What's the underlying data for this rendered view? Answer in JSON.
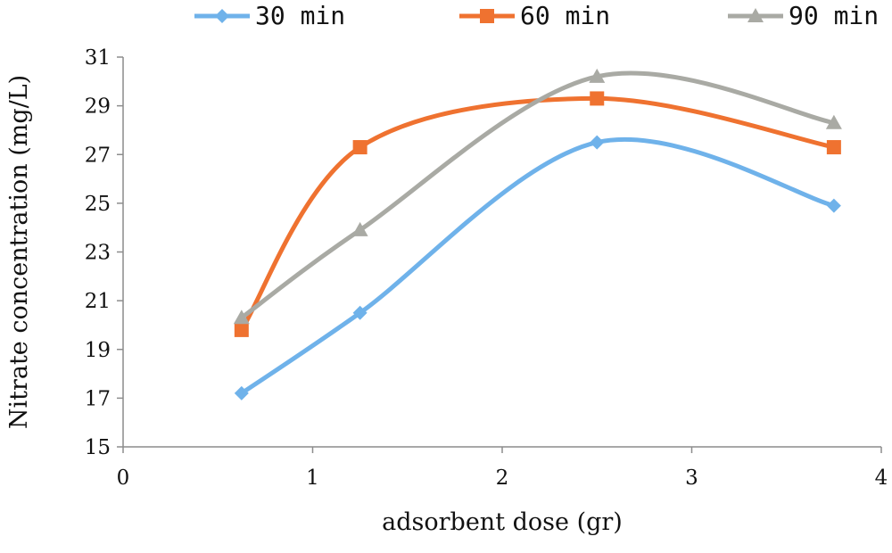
{
  "chart_data": {
    "type": "line",
    "title": "",
    "xlabel": "adsorbent dose (gr)",
    "ylabel": "Nitrate concentration (mg/L)",
    "xlim": [
      0,
      4
    ],
    "ylim": [
      15,
      31
    ],
    "x_ticks": [
      0,
      1,
      2,
      3,
      4
    ],
    "y_ticks": [
      15,
      17,
      19,
      21,
      23,
      25,
      27,
      29,
      31
    ],
    "grid": false,
    "smooth": true,
    "legend_position": "top",
    "x": [
      0.625,
      1.25,
      2.5,
      3.75
    ],
    "series": [
      {
        "name": "30 min",
        "values": [
          17.2,
          20.5,
          27.5,
          24.9
        ],
        "color": "#6fb2ea",
        "marker": "diamond"
      },
      {
        "name": "60 min",
        "values": [
          19.8,
          27.3,
          29.3,
          27.3
        ],
        "color": "#ef7230",
        "marker": "square"
      },
      {
        "name": "90 min",
        "values": [
          20.3,
          23.9,
          30.2,
          28.3
        ],
        "color": "#a9aaa4",
        "marker": "triangle"
      }
    ]
  }
}
